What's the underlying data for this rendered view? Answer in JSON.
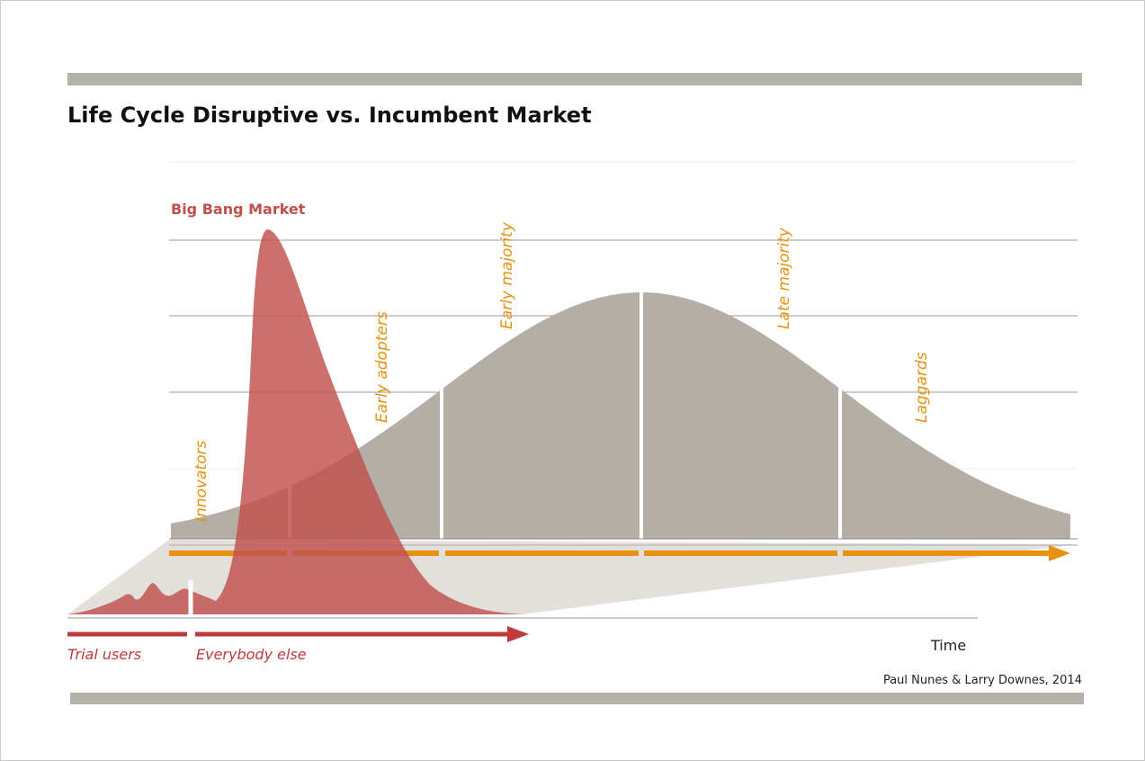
{
  "header": {
    "title": "Life Cycle Disruptive vs. Incumbent Market"
  },
  "curves": {
    "big_bang": "Big Bang Market"
  },
  "segments": [
    "Innovators",
    "Early adopters",
    "Early majority",
    "Late majority",
    "Laggards"
  ],
  "bottom": {
    "trial": "Trial users",
    "everybody": "Everybody else",
    "axis": "Time"
  },
  "credit": "Paul Nunes & Larry Downes, 2014"
}
